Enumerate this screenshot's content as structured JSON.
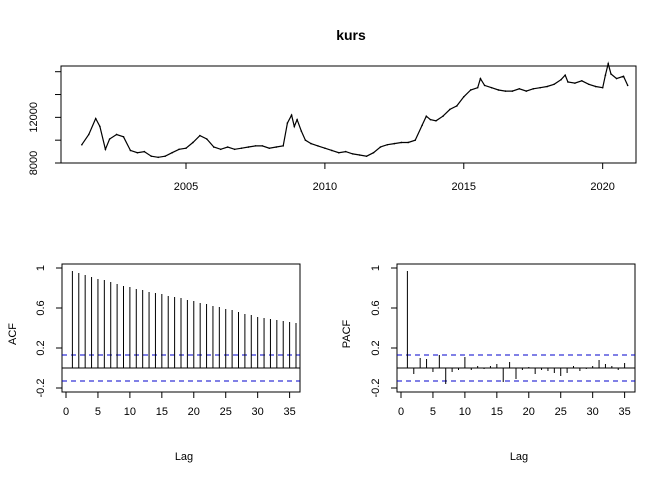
{
  "chart_data": [
    {
      "type": "line",
      "title": "kurs",
      "xlabel": "",
      "ylabel": "",
      "xlim": [
        2000.5,
        2021.2
      ],
      "ylim": [
        8000,
        16500
      ],
      "xticks": [
        2005,
        2010,
        2015,
        2020
      ],
      "yticks": [
        8000,
        12000
      ],
      "extra_ytick_marks": [
        10000,
        14000,
        16000
      ],
      "series": [
        {
          "x": [
            2001.25,
            2001.5,
            2001.75,
            2001.9,
            2002.1,
            2002.25,
            2002.5,
            2002.75,
            2003.0,
            2003.25,
            2003.5,
            2003.75,
            2004.0,
            2004.25,
            2004.5,
            2004.75,
            2005.0,
            2005.25,
            2005.5,
            2005.75,
            2006.0,
            2006.25,
            2006.5,
            2006.75,
            2007.0,
            2007.25,
            2007.5,
            2007.75,
            2008.0,
            2008.25,
            2008.5,
            2008.65,
            2008.8,
            2008.9,
            2009.0,
            2009.15,
            2009.3,
            2009.5,
            2009.75,
            2010.0,
            2010.25,
            2010.5,
            2010.75,
            2011.0,
            2011.25,
            2011.5,
            2011.75,
            2012.0,
            2012.25,
            2012.5,
            2012.75,
            2013.0,
            2013.25,
            2013.5,
            2013.65,
            2013.8,
            2014.0,
            2014.25,
            2014.5,
            2014.75,
            2015.0,
            2015.25,
            2015.5,
            2015.6,
            2015.75,
            2016.0,
            2016.25,
            2016.5,
            2016.75,
            2017.0,
            2017.25,
            2017.5,
            2017.75,
            2018.0,
            2018.25,
            2018.5,
            2018.65,
            2018.75,
            2019.0,
            2019.25,
            2019.5,
            2019.75,
            2020.0,
            2020.1,
            2020.2,
            2020.3,
            2020.5,
            2020.75,
            2020.9
          ],
          "y": [
            9600,
            10500,
            11900,
            11200,
            9200,
            10100,
            10500,
            10300,
            9100,
            8900,
            9000,
            8600,
            8500,
            8600,
            8900,
            9200,
            9300,
            9800,
            10400,
            10100,
            9400,
            9200,
            9400,
            9200,
            9300,
            9400,
            9500,
            9500,
            9300,
            9400,
            9500,
            11500,
            12200,
            11200,
            11800,
            10800,
            10000,
            9700,
            9500,
            9300,
            9100,
            8900,
            9000,
            8800,
            8700,
            8600,
            8900,
            9400,
            9600,
            9700,
            9800,
            9800,
            10000,
            11300,
            12100,
            11800,
            11700,
            12100,
            12700,
            13000,
            13800,
            14400,
            14600,
            15400,
            14800,
            14600,
            14400,
            14300,
            14300,
            14500,
            14300,
            14500,
            14600,
            14700,
            14900,
            15300,
            15700,
            15100,
            15000,
            15200,
            14900,
            14700,
            14600,
            15700,
            16700,
            15800,
            15400,
            15600,
            14800
          ]
        }
      ]
    },
    {
      "type": "bar",
      "title": "",
      "xlabel": "Lag",
      "ylabel": "ACF",
      "xlim": [
        0,
        36
      ],
      "ylim": [
        -0.2,
        1.0
      ],
      "xticks": [
        0,
        5,
        10,
        15,
        20,
        25,
        30,
        35
      ],
      "yticks": [
        -0.2,
        0.2,
        0.6,
        1.0
      ],
      "confidence_band": 0.13,
      "lags": [
        1,
        2,
        3,
        4,
        5,
        6,
        7,
        8,
        9,
        10,
        11,
        12,
        13,
        14,
        15,
        16,
        17,
        18,
        19,
        20,
        21,
        22,
        23,
        24,
        25,
        26,
        27,
        28,
        29,
        30,
        31,
        32,
        33,
        34,
        35,
        36
      ],
      "values": [
        0.97,
        0.95,
        0.93,
        0.91,
        0.89,
        0.88,
        0.86,
        0.84,
        0.82,
        0.81,
        0.79,
        0.78,
        0.76,
        0.75,
        0.74,
        0.72,
        0.71,
        0.7,
        0.68,
        0.67,
        0.65,
        0.64,
        0.62,
        0.61,
        0.59,
        0.58,
        0.56,
        0.54,
        0.53,
        0.51,
        0.5,
        0.49,
        0.48,
        0.47,
        0.46,
        0.45
      ]
    },
    {
      "type": "bar",
      "title": "",
      "xlabel": "Lag",
      "ylabel": "PACF",
      "xlim": [
        0,
        36
      ],
      "ylim": [
        -0.2,
        1.0
      ],
      "xticks": [
        0,
        5,
        10,
        15,
        20,
        25,
        30,
        35
      ],
      "yticks": [
        -0.2,
        0.2,
        0.6,
        1.0
      ],
      "confidence_band": 0.13,
      "lags": [
        1,
        2,
        3,
        4,
        5,
        6,
        7,
        8,
        9,
        10,
        11,
        12,
        13,
        14,
        15,
        16,
        17,
        18,
        19,
        20,
        21,
        22,
        23,
        24,
        25,
        26,
        27,
        28,
        29,
        30,
        31,
        32,
        33,
        34,
        35
      ],
      "values": [
        0.97,
        -0.06,
        0.1,
        0.09,
        -0.04,
        0.13,
        -0.16,
        -0.04,
        -0.02,
        0.11,
        -0.02,
        0.02,
        -0.01,
        0.02,
        0.04,
        -0.14,
        0.06,
        -0.11,
        -0.02,
        0.01,
        -0.06,
        -0.02,
        -0.03,
        -0.05,
        -0.08,
        -0.05,
        0.02,
        -0.03,
        -0.01,
        0.02,
        0.08,
        0.04,
        0.02,
        -0.02,
        0.05
      ]
    }
  ]
}
